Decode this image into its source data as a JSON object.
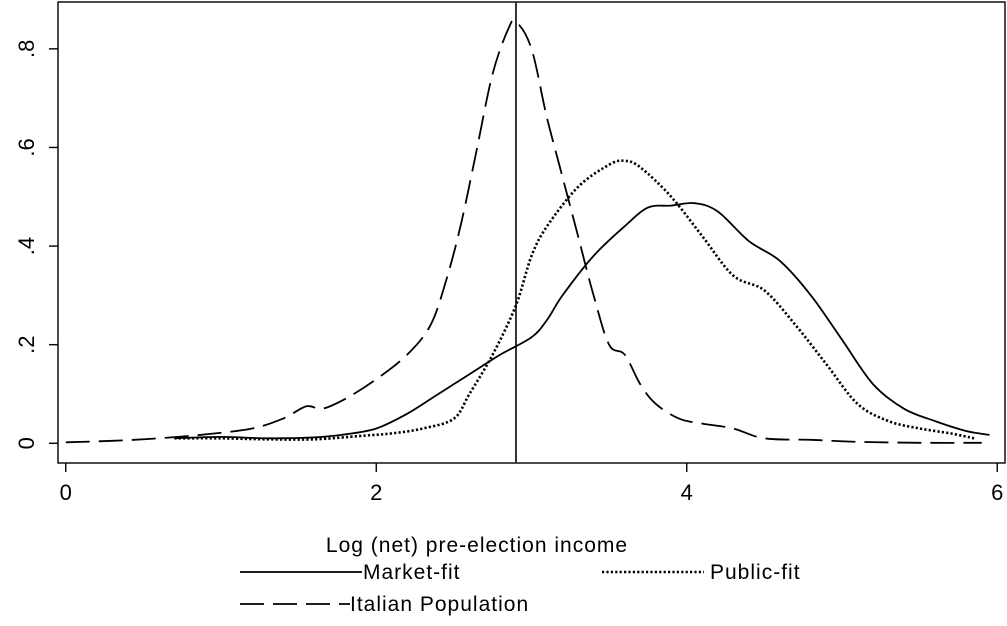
{
  "chart_data": {
    "type": "line",
    "title": "",
    "xlabel": "Log (net) pre-election income",
    "ylabel": "",
    "xlim": [
      -0.05,
      6.05
    ],
    "ylim": [
      -0.04,
      0.895
    ],
    "xticks": [
      {
        "value": 0,
        "label": "0"
      },
      {
        "value": 2,
        "label": "2"
      },
      {
        "value": 4,
        "label": "4"
      },
      {
        "value": 6,
        "label": "6"
      }
    ],
    "yticks": [
      {
        "value": 0,
        "label": "0"
      },
      {
        "value": 0.2,
        "label": ".2"
      },
      {
        "value": 0.4,
        "label": ".4"
      },
      {
        "value": 0.6,
        "label": ".6"
      },
      {
        "value": 0.8,
        "label": ".8"
      }
    ],
    "vline": {
      "x": 2.9
    },
    "grid": false,
    "legend_position": "bottom",
    "series": [
      {
        "name": "Market-fit",
        "style": "solid",
        "color": "#000000",
        "points": [
          [
            0.7,
            0.01
          ],
          [
            1.0,
            0.013
          ],
          [
            1.3,
            0.01
          ],
          [
            1.6,
            0.012
          ],
          [
            1.8,
            0.018
          ],
          [
            2.0,
            0.03
          ],
          [
            2.2,
            0.06
          ],
          [
            2.4,
            0.1
          ],
          [
            2.6,
            0.14
          ],
          [
            2.8,
            0.18
          ],
          [
            3.0,
            0.215
          ],
          [
            3.1,
            0.25
          ],
          [
            3.2,
            0.3
          ],
          [
            3.4,
            0.38
          ],
          [
            3.6,
            0.44
          ],
          [
            3.75,
            0.478
          ],
          [
            3.9,
            0.482
          ],
          [
            4.05,
            0.487
          ],
          [
            4.2,
            0.47
          ],
          [
            4.4,
            0.41
          ],
          [
            4.6,
            0.37
          ],
          [
            4.8,
            0.3
          ],
          [
            5.0,
            0.21
          ],
          [
            5.2,
            0.12
          ],
          [
            5.4,
            0.07
          ],
          [
            5.6,
            0.045
          ],
          [
            5.8,
            0.025
          ],
          [
            5.95,
            0.017
          ]
        ]
      },
      {
        "name": "Public-fit",
        "style": "dotted",
        "color": "#000000",
        "points": [
          [
            0.7,
            0.01
          ],
          [
            1.0,
            0.01
          ],
          [
            1.3,
            0.008
          ],
          [
            1.6,
            0.008
          ],
          [
            1.9,
            0.015
          ],
          [
            2.1,
            0.02
          ],
          [
            2.3,
            0.03
          ],
          [
            2.5,
            0.05
          ],
          [
            2.6,
            0.1
          ],
          [
            2.75,
            0.18
          ],
          [
            2.9,
            0.28
          ],
          [
            3.0,
            0.38
          ],
          [
            3.1,
            0.44
          ],
          [
            3.3,
            0.52
          ],
          [
            3.5,
            0.565
          ],
          [
            3.6,
            0.573
          ],
          [
            3.7,
            0.56
          ],
          [
            3.9,
            0.5
          ],
          [
            4.1,
            0.42
          ],
          [
            4.3,
            0.34
          ],
          [
            4.5,
            0.31
          ],
          [
            4.7,
            0.24
          ],
          [
            4.9,
            0.16
          ],
          [
            5.1,
            0.08
          ],
          [
            5.3,
            0.045
          ],
          [
            5.5,
            0.03
          ],
          [
            5.7,
            0.02
          ],
          [
            5.85,
            0.01
          ]
        ]
      },
      {
        "name": "Italian Population",
        "style": "dashed",
        "color": "#000000",
        "points": [
          [
            0.0,
            0.002
          ],
          [
            0.3,
            0.005
          ],
          [
            0.6,
            0.01
          ],
          [
            0.9,
            0.018
          ],
          [
            1.2,
            0.03
          ],
          [
            1.4,
            0.05
          ],
          [
            1.55,
            0.075
          ],
          [
            1.65,
            0.07
          ],
          [
            1.8,
            0.09
          ],
          [
            2.0,
            0.13
          ],
          [
            2.2,
            0.18
          ],
          [
            2.35,
            0.24
          ],
          [
            2.45,
            0.33
          ],
          [
            2.55,
            0.45
          ],
          [
            2.65,
            0.6
          ],
          [
            2.75,
            0.75
          ],
          [
            2.85,
            0.84
          ],
          [
            2.9,
            0.855
          ],
          [
            3.0,
            0.8
          ],
          [
            3.1,
            0.66
          ],
          [
            3.2,
            0.54
          ],
          [
            3.3,
            0.42
          ],
          [
            3.4,
            0.3
          ],
          [
            3.5,
            0.2
          ],
          [
            3.6,
            0.18
          ],
          [
            3.7,
            0.12
          ],
          [
            3.8,
            0.08
          ],
          [
            3.95,
            0.05
          ],
          [
            4.1,
            0.04
          ],
          [
            4.3,
            0.03
          ],
          [
            4.5,
            0.01
          ],
          [
            4.8,
            0.007
          ],
          [
            5.1,
            0.003
          ],
          [
            5.5,
            0.001
          ],
          [
            5.9,
            0.001
          ]
        ]
      }
    ]
  }
}
